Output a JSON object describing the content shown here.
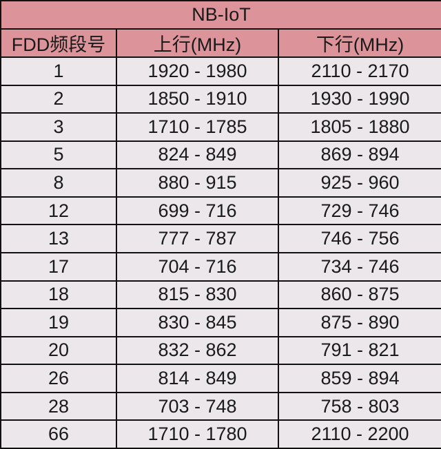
{
  "table": {
    "title": "NB-IoT",
    "headers": [
      "FDD频段号",
      "上行(MHz)",
      "下行(MHz)"
    ],
    "rows": [
      [
        "1",
        "1920 - 1980",
        "2110 - 2170"
      ],
      [
        "2",
        "1850 - 1910",
        "1930 - 1990"
      ],
      [
        "3",
        "1710 - 1785",
        "1805 - 1880"
      ],
      [
        "5",
        "824 - 849",
        "869 - 894"
      ],
      [
        "8",
        "880 - 915",
        "925 - 960"
      ],
      [
        "12",
        "699 - 716",
        "729 - 746"
      ],
      [
        "13",
        "777 - 787",
        "746 - 756"
      ],
      [
        "17",
        "704 - 716",
        "734 - 746"
      ],
      [
        "18",
        "815 - 830",
        "860 - 875"
      ],
      [
        "19",
        "830 - 845",
        "875 - 890"
      ],
      [
        "20",
        "832 - 862",
        "791 - 821"
      ],
      [
        "26",
        "814 - 849",
        "859 - 894"
      ],
      [
        "28",
        "703 - 748",
        "758 - 803"
      ],
      [
        "66",
        "1710 - 1780",
        "2110 - 2200"
      ]
    ]
  },
  "colors": {
    "header_bg": "#dc9399",
    "row_bg": "#ebe7ea",
    "border": "#111111"
  }
}
